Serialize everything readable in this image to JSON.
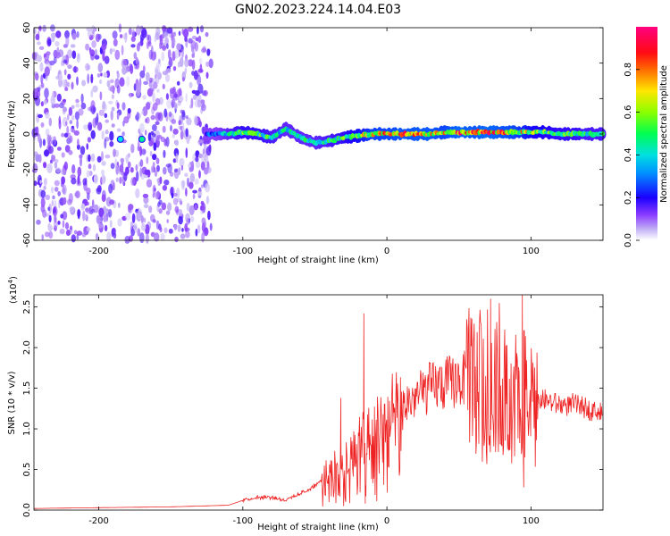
{
  "title": "GN02.2023.224.14.04.E03",
  "chart_data": [
    {
      "type": "heatmap",
      "xlabel": "Height of straight line (km)",
      "ylabel": "Frequency (Hz)",
      "xlim": [
        -245,
        150
      ],
      "ylim": [
        -60,
        60
      ],
      "x_ticks": [
        -200,
        -100,
        0,
        100
      ],
      "y_ticks": [
        -60,
        -40,
        -20,
        0,
        20,
        40,
        60
      ],
      "colorbar": {
        "label": "Normalized spectral amplitude",
        "range": [
          0,
          1
        ],
        "ticks": [
          "0.0",
          "0.2",
          "0.4",
          "0.6",
          "0.8"
        ],
        "colormap": [
          "#ffffff",
          "#b9a7f0",
          "#6a00ff",
          "#0022ff",
          "#00c8ff",
          "#00ff66",
          "#b4ff00",
          "#ffd000",
          "#ff2a00",
          "#ff0066"
        ]
      },
      "noise_region_x": [
        -245,
        -122
      ],
      "signal_ridge": {
        "x": [
          -185,
          -170,
          -125,
          -110,
          -100,
          -90,
          -80,
          -70,
          -60,
          -50,
          -40,
          -30,
          -20,
          -10,
          0,
          10,
          20,
          30,
          40,
          50,
          60,
          70,
          80,
          90,
          100,
          110,
          120,
          130,
          140,
          150
        ],
        "freq_hz": [
          -3,
          -3,
          0,
          0,
          1,
          0,
          -2,
          3,
          -2,
          -5,
          -4,
          -2,
          -1,
          0,
          0,
          0,
          0,
          0,
          1,
          1,
          1,
          1,
          1,
          1,
          1,
          1,
          0,
          0,
          0,
          0
        ],
        "amplitude": [
          0.4,
          0.45,
          0.3,
          0.5,
          0.6,
          0.6,
          0.55,
          0.5,
          0.5,
          0.5,
          0.55,
          0.6,
          0.7,
          0.85,
          0.85,
          0.9,
          0.9,
          0.9,
          0.85,
          0.95,
          0.9,
          0.95,
          0.9,
          0.85,
          0.7,
          0.65,
          0.6,
          0.6,
          0.55,
          0.55
        ]
      }
    },
    {
      "type": "line",
      "xlabel": "Height of straight line (km)",
      "ylabel": "SNR (10 * v/v)",
      "y_multiplier": "(x10",
      "y_multiplier_exp": "4",
      "y_multiplier_close": ")",
      "xlim": [
        -245,
        150
      ],
      "ylim": [
        0,
        2.65
      ],
      "x_ticks": [
        -200,
        -100,
        0,
        100
      ],
      "y_ticks": [
        "0.0",
        "0.5",
        "1.0",
        "1.5",
        "2.0",
        "2.5"
      ],
      "series": [
        {
          "color": "#ee2222",
          "envelope_x": [
            -245,
            -200,
            -150,
            -110,
            -100,
            -90,
            -80,
            -70,
            -60,
            -50,
            -40,
            -35,
            -30,
            -25,
            -20,
            -15,
            -10,
            -5,
            0,
            10,
            20,
            30,
            40,
            50,
            60,
            70,
            75,
            80,
            85,
            90,
            95,
            100,
            110,
            120,
            130,
            140,
            150
          ],
          "envelope_y": [
            0.02,
            0.03,
            0.04,
            0.06,
            0.12,
            0.16,
            0.16,
            0.12,
            0.2,
            0.3,
            0.45,
            0.55,
            0.6,
            0.7,
            0.75,
            0.9,
            0.95,
            1.0,
            1.1,
            1.25,
            1.4,
            1.5,
            1.55,
            1.6,
            1.62,
            1.6,
            1.55,
            1.5,
            1.5,
            1.45,
            1.45,
            1.4,
            1.35,
            1.3,
            1.3,
            1.25,
            1.2
          ],
          "spikes": [
            {
              "x": -32,
              "y": 1.38
            },
            {
              "x": -30,
              "y": 0.05
            },
            {
              "x": -16,
              "y": 2.42
            },
            {
              "x": -15,
              "y": 0.08
            },
            {
              "x": 60,
              "y": 2.05
            },
            {
              "x": 72,
              "y": 2.6
            },
            {
              "x": 78,
              "y": 2.55
            },
            {
              "x": 85,
              "y": 0.75
            },
            {
              "x": 94,
              "y": 2.65
            },
            {
              "x": 95,
              "y": 0.28
            }
          ]
        }
      ]
    }
  ]
}
